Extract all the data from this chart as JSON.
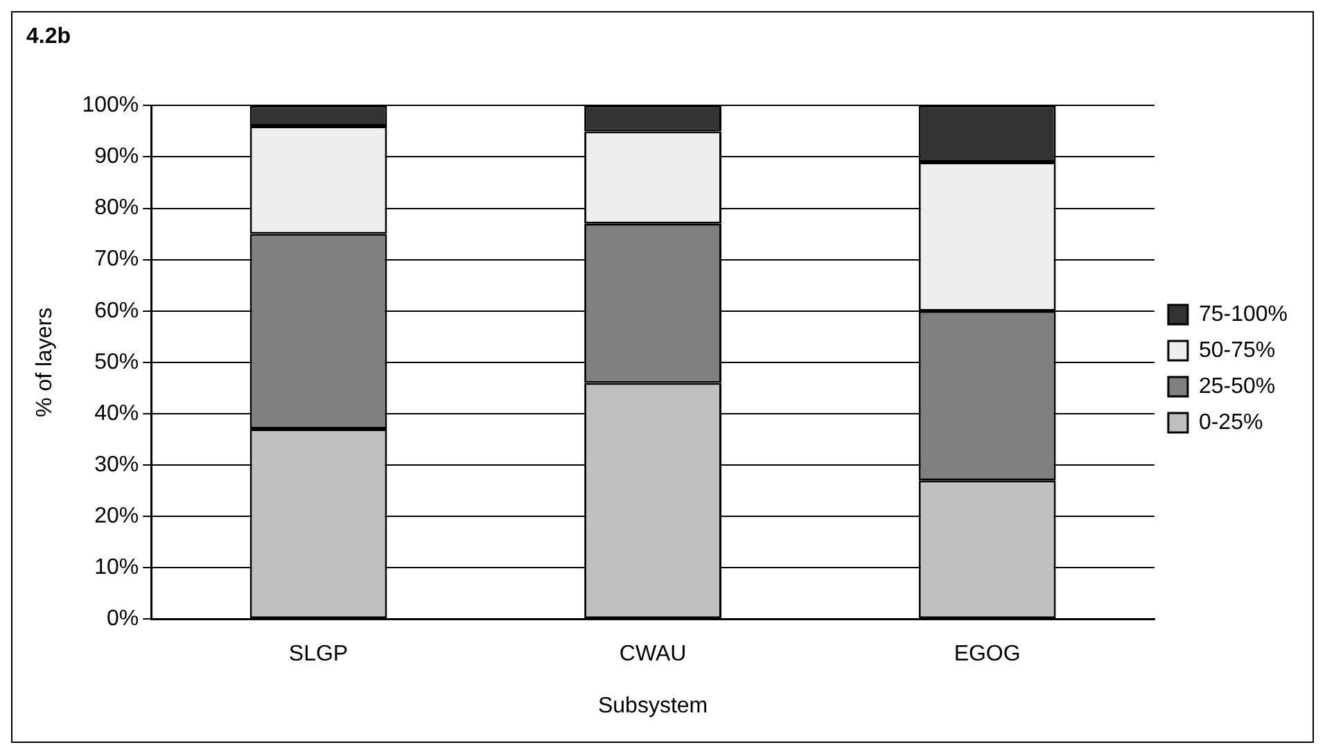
{
  "chart_data": {
    "type": "bar",
    "title": "4.2b",
    "xlabel": "Subsystem",
    "ylabel": "% of layers",
    "categories": [
      "SLGP",
      "CWAU",
      "EGOG"
    ],
    "stacked": true,
    "series": [
      {
        "name": "0-25%",
        "color": "#c0c0c0",
        "values": [
          37,
          46,
          27
        ]
      },
      {
        "name": "25-50%",
        "color": "#808080",
        "values": [
          38,
          31,
          33
        ]
      },
      {
        "name": "50-75%",
        "color": "#eeeeee",
        "values": [
          21,
          18,
          29
        ]
      },
      {
        "name": "75-100%",
        "color": "#333333",
        "values": [
          4,
          5,
          11
        ]
      }
    ],
    "ylim": [
      0,
      100
    ],
    "yticks": [
      {
        "value": 0,
        "label": "0%"
      },
      {
        "value": 10,
        "label": "10%"
      },
      {
        "value": 20,
        "label": "20%"
      },
      {
        "value": 30,
        "label": "30%"
      },
      {
        "value": 40,
        "label": "40%"
      },
      {
        "value": 50,
        "label": "50%"
      },
      {
        "value": 60,
        "label": "60%"
      },
      {
        "value": 70,
        "label": "70%"
      },
      {
        "value": 80,
        "label": "80%"
      },
      {
        "value": 90,
        "label": "90%"
      },
      {
        "value": 100,
        "label": "100%"
      }
    ],
    "grid": "y",
    "legend": "right"
  }
}
